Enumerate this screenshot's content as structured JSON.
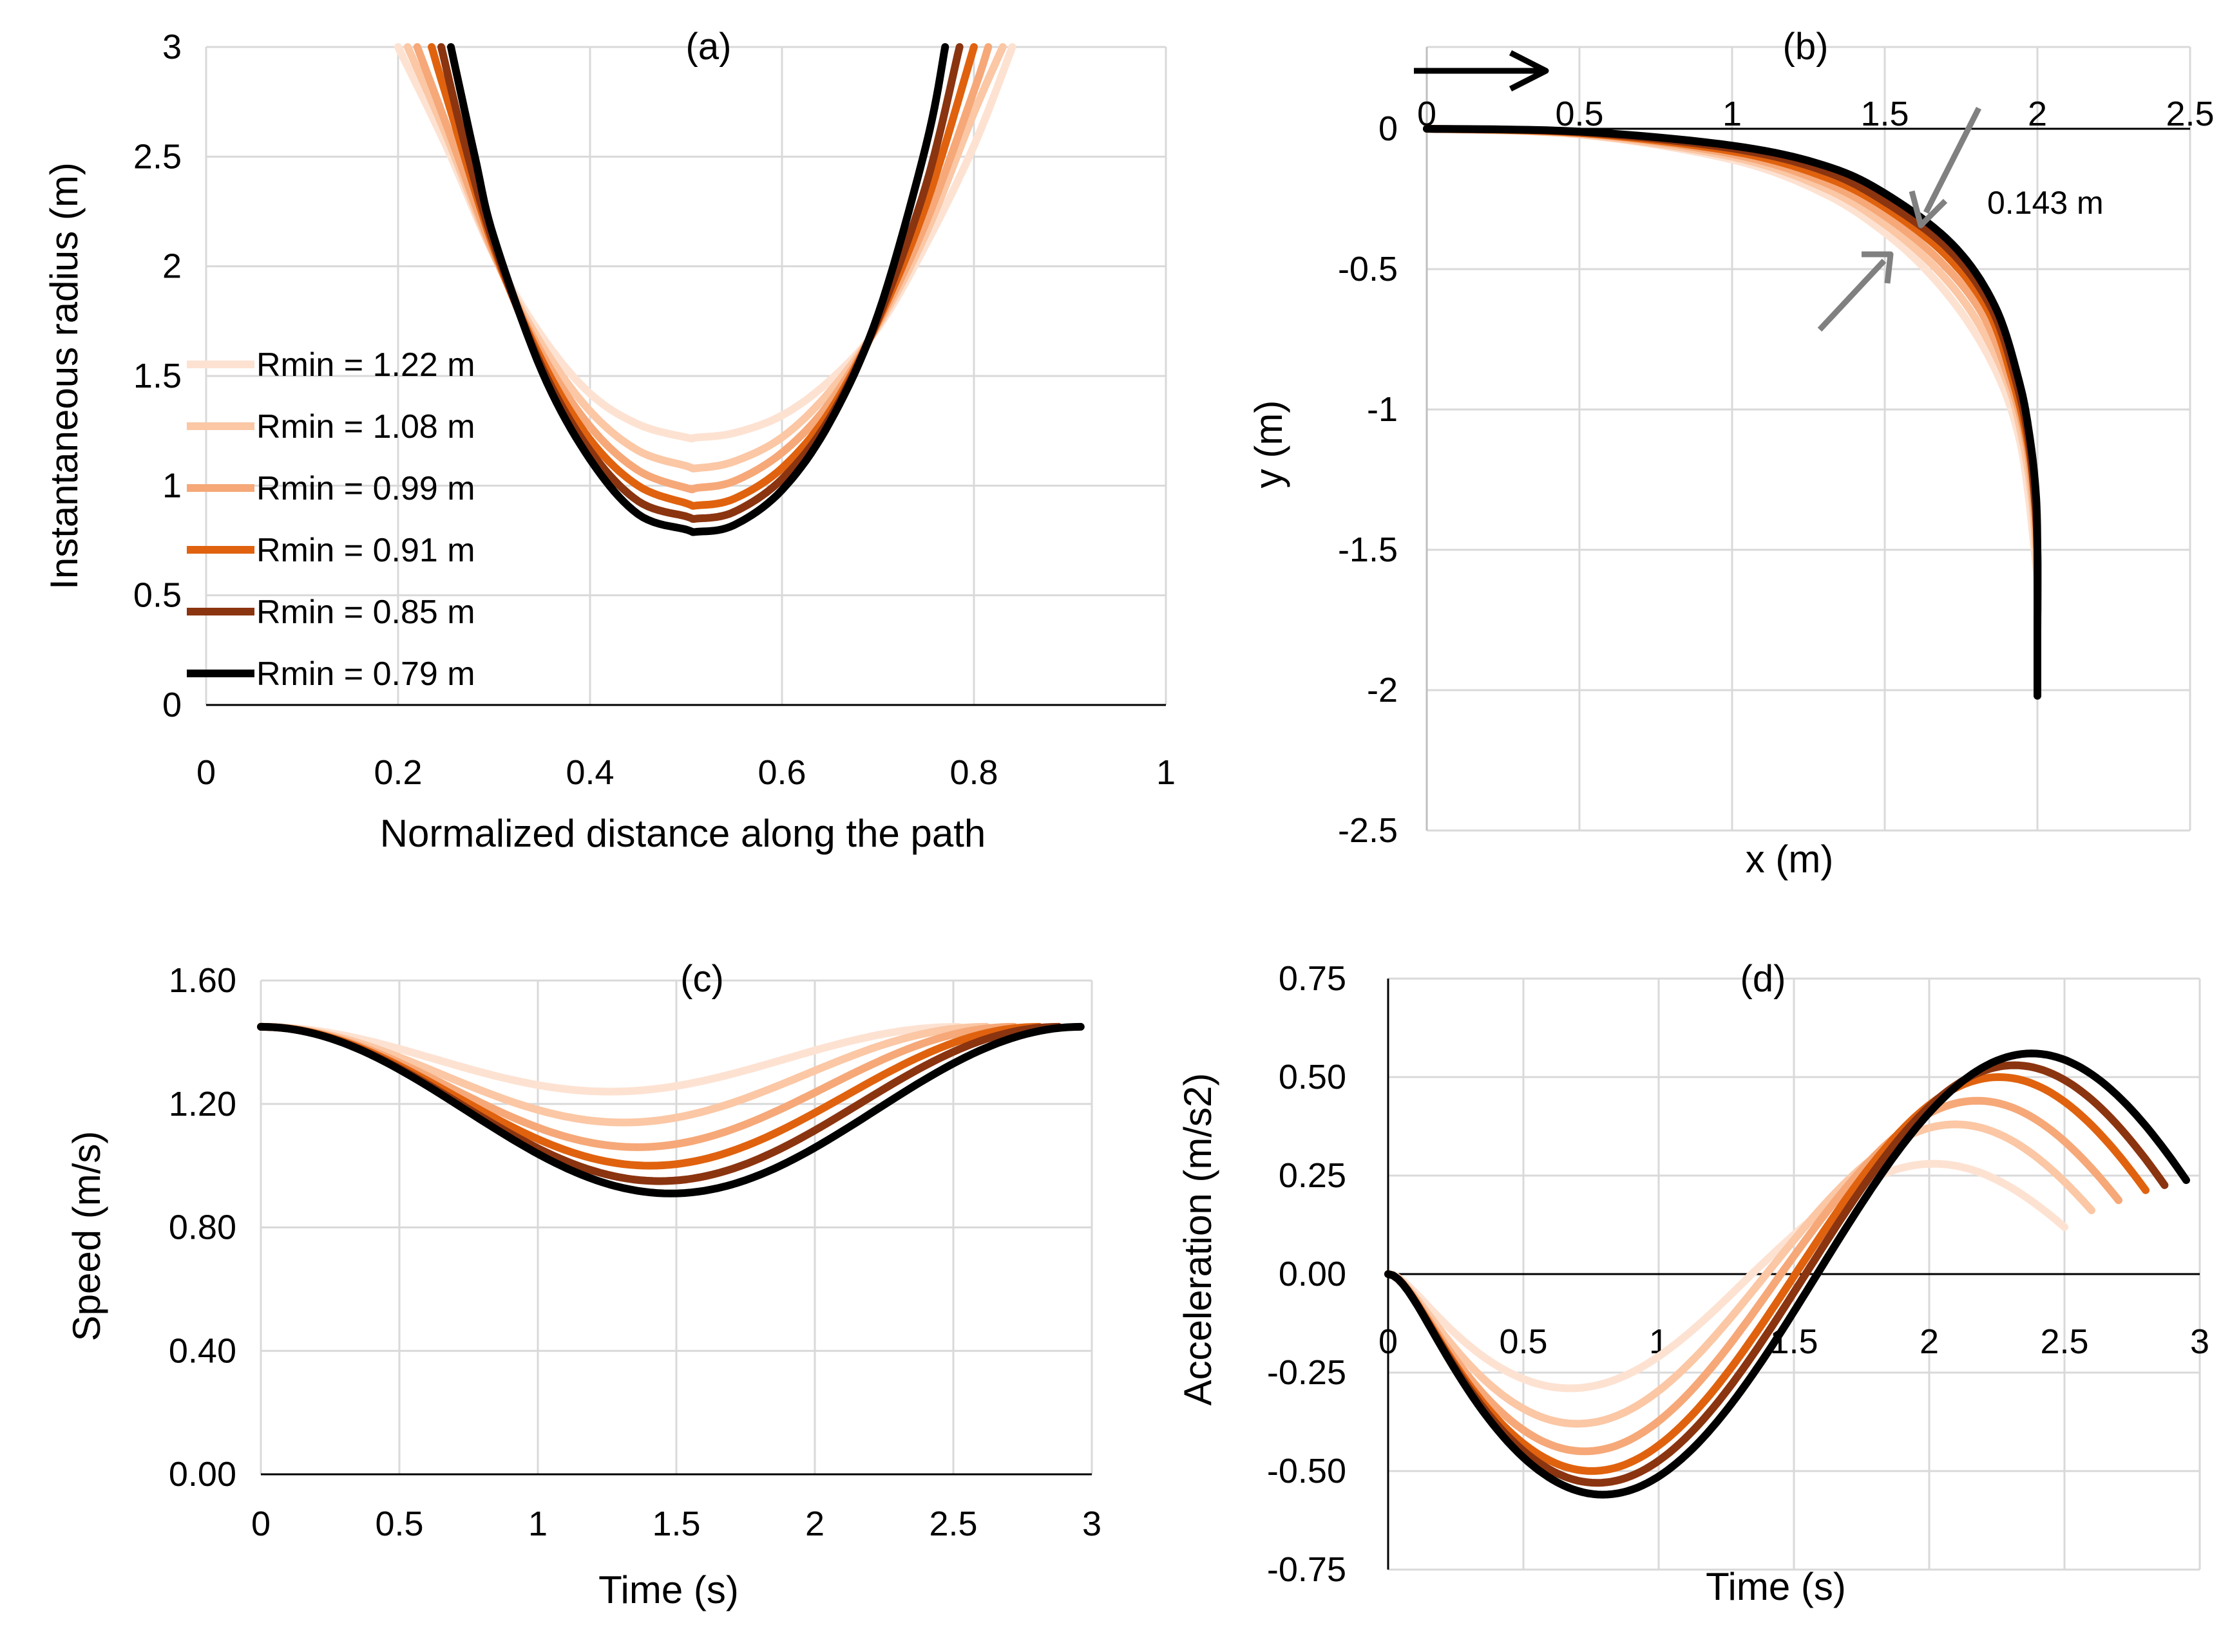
{
  "chart_data": [
    {
      "type": "line",
      "title": "(a)",
      "xlabel": "Normalized distance along the path",
      "ylabel": "Instantaneous radius (m)",
      "xlim": [
        0,
        1
      ],
      "ylim": [
        0,
        3
      ],
      "xticks": [
        "0",
        "0.2",
        "0.4",
        "0.6",
        "0.8",
        "1"
      ],
      "yticks": [
        "0",
        "0.5",
        "1",
        "1.5",
        "2",
        "2.5",
        "3"
      ],
      "legend_position": "left",
      "series": [
        {
          "name": "Rmin = 1.22 m",
          "color": "#fde2d2",
          "x": [
            0.2,
            0.25,
            0.3,
            0.35,
            0.4,
            0.45,
            0.5,
            0.512,
            0.55,
            0.6,
            0.65,
            0.7,
            0.75,
            0.8,
            0.84
          ],
          "y": [
            3.0,
            2.55,
            2.05,
            1.68,
            1.42,
            1.28,
            1.22,
            1.22,
            1.24,
            1.32,
            1.48,
            1.72,
            2.1,
            2.55,
            3.0
          ]
        },
        {
          "name": "Rmin = 1.08 m",
          "color": "#fbc7a5",
          "x": [
            0.21,
            0.25,
            0.3,
            0.35,
            0.4,
            0.45,
            0.5,
            0.512,
            0.55,
            0.6,
            0.65,
            0.7,
            0.75,
            0.8,
            0.83
          ],
          "y": [
            3.0,
            2.6,
            2.05,
            1.64,
            1.34,
            1.16,
            1.09,
            1.08,
            1.11,
            1.22,
            1.43,
            1.73,
            2.15,
            2.7,
            3.0
          ]
        },
        {
          "name": "Rmin = 0.99 m",
          "color": "#f6a878",
          "x": [
            0.22,
            0.25,
            0.3,
            0.35,
            0.4,
            0.45,
            0.5,
            0.512,
            0.55,
            0.6,
            0.65,
            0.7,
            0.75,
            0.8,
            0.815
          ],
          "y": [
            3.0,
            2.65,
            2.06,
            1.6,
            1.27,
            1.07,
            0.99,
            0.99,
            1.02,
            1.15,
            1.38,
            1.74,
            2.2,
            2.8,
            3.0
          ]
        },
        {
          "name": "Rmin = 0.91 m",
          "color": "#e0620e",
          "x": [
            0.235,
            0.25,
            0.3,
            0.35,
            0.4,
            0.45,
            0.5,
            0.512,
            0.55,
            0.6,
            0.65,
            0.7,
            0.75,
            0.8
          ],
          "y": [
            3.0,
            2.78,
            2.08,
            1.57,
            1.21,
            1.0,
            0.92,
            0.91,
            0.94,
            1.08,
            1.34,
            1.75,
            2.28,
            3.0
          ]
        },
        {
          "name": "Rmin = 0.85 m",
          "color": "#8b3410",
          "x": [
            0.245,
            0.27,
            0.3,
            0.35,
            0.4,
            0.45,
            0.5,
            0.512,
            0.55,
            0.6,
            0.65,
            0.7,
            0.75,
            0.785
          ],
          "y": [
            3.0,
            2.55,
            2.1,
            1.54,
            1.16,
            0.93,
            0.86,
            0.85,
            0.88,
            1.03,
            1.31,
            1.76,
            2.37,
            3.0
          ]
        },
        {
          "name": "Rmin = 0.79 m",
          "color": "#000000",
          "x": [
            0.255,
            0.28,
            0.3,
            0.35,
            0.4,
            0.45,
            0.5,
            0.512,
            0.55,
            0.6,
            0.65,
            0.7,
            0.75,
            0.77
          ],
          "y": [
            3.0,
            2.5,
            2.13,
            1.52,
            1.12,
            0.87,
            0.8,
            0.79,
            0.82,
            0.98,
            1.29,
            1.78,
            2.55,
            3.0
          ]
        }
      ]
    },
    {
      "type": "line",
      "title": "(b)",
      "xlabel": "x (m)",
      "ylabel": "y (m)",
      "xlim": [
        0,
        2.5
      ],
      "ylim": [
        -2.5,
        0.3
      ],
      "xticks": [
        "0",
        "0.5",
        "1",
        "1.5",
        "2",
        "2.5"
      ],
      "yticks": [
        "0",
        "-0.5",
        "-1",
        "-1.5",
        "-2",
        "-2.5"
      ],
      "annotation": "0.143 m",
      "direction_arrow": "rightward",
      "series": [
        {
          "name": "Rmin = 1.22 m",
          "color": "#fde2d2",
          "x": [
            0,
            0.5,
            1,
            1.3,
            1.5,
            1.65,
            1.78,
            1.88,
            1.94,
            1.97,
            1.99,
            2.0
          ],
          "y": [
            0,
            -0.02,
            -0.11,
            -0.23,
            -0.37,
            -0.52,
            -0.7,
            -0.9,
            -1.1,
            -1.3,
            -1.5,
            -1.6
          ]
        },
        {
          "name": "Rmin = 1.08 m",
          "color": "#fbc7a5",
          "x": [
            0,
            0.5,
            1,
            1.3,
            1.5,
            1.67,
            1.8,
            1.9,
            1.95,
            1.98,
            1.995,
            2.0
          ],
          "y": [
            0,
            -0.02,
            -0.1,
            -0.21,
            -0.34,
            -0.5,
            -0.68,
            -0.9,
            -1.1,
            -1.3,
            -1.5,
            -1.65
          ]
        },
        {
          "name": "Rmin = 0.99 m",
          "color": "#f6a878",
          "x": [
            0,
            0.5,
            1,
            1.3,
            1.5,
            1.68,
            1.82,
            1.91,
            1.96,
            1.985,
            1.998,
            2.0
          ],
          "y": [
            0,
            -0.015,
            -0.09,
            -0.19,
            -0.31,
            -0.47,
            -0.66,
            -0.9,
            -1.1,
            -1.3,
            -1.5,
            -1.7
          ]
        },
        {
          "name": "Rmin = 0.91 m",
          "color": "#e0620e",
          "x": [
            0,
            0.5,
            1,
            1.3,
            1.5,
            1.7,
            1.84,
            1.92,
            1.965,
            1.99,
            2.0,
            2.0
          ],
          "y": [
            0,
            -0.015,
            -0.08,
            -0.17,
            -0.28,
            -0.45,
            -0.65,
            -0.9,
            -1.1,
            -1.3,
            -1.5,
            -1.75
          ]
        },
        {
          "name": "Rmin = 0.85 m",
          "color": "#8b3410",
          "x": [
            0,
            0.5,
            1,
            1.3,
            1.5,
            1.71,
            1.85,
            1.93,
            1.97,
            1.99,
            2.0,
            2.0
          ],
          "y": [
            0,
            -0.012,
            -0.07,
            -0.15,
            -0.26,
            -0.43,
            -0.64,
            -0.9,
            -1.1,
            -1.3,
            -1.5,
            -1.8
          ]
        },
        {
          "name": "Rmin = 0.79 m",
          "color": "#000000",
          "x": [
            0,
            0.5,
            1,
            1.3,
            1.5,
            1.72,
            1.86,
            1.94,
            1.975,
            1.995,
            2.0,
            2.0,
            2.0
          ],
          "y": [
            0,
            -0.01,
            -0.06,
            -0.13,
            -0.23,
            -0.41,
            -0.63,
            -0.9,
            -1.1,
            -1.3,
            -1.5,
            -1.8,
            -2.02
          ]
        }
      ]
    },
    {
      "type": "line",
      "title": "(c)",
      "xlabel": "Time (s)",
      "ylabel": "Speed (m/s)",
      "xlim": [
        0,
        3
      ],
      "ylim": [
        0,
        1.6
      ],
      "xticks": [
        "0",
        "0.5",
        "1",
        "1.5",
        "2",
        "2.5",
        "3"
      ],
      "yticks": [
        "0.00",
        "0.40",
        "0.80",
        "1.20",
        "1.60"
      ],
      "series": [
        {
          "name": "Rmin = 1.22 m",
          "color": "#fde2d2",
          "tmax": 2.52,
          "vmin": 1.24
        },
        {
          "name": "Rmin = 1.08 m",
          "color": "#fbc7a5",
          "tmax": 2.62,
          "vmin": 1.14
        },
        {
          "name": "Rmin = 0.99 m",
          "color": "#f6a878",
          "tmax": 2.72,
          "vmin": 1.06
        },
        {
          "name": "Rmin = 0.91 m",
          "color": "#e0620e",
          "tmax": 2.81,
          "vmin": 1.0
        },
        {
          "name": "Rmin = 0.85 m",
          "color": "#8b3410",
          "tmax": 2.88,
          "vmin": 0.95
        },
        {
          "name": "Rmin = 0.79 m",
          "color": "#000000",
          "tmax": 2.96,
          "vmin": 0.91
        }
      ],
      "v0": 1.45
    },
    {
      "type": "line",
      "title": "(d)",
      "xlabel": "Time (s)",
      "ylabel": "Acceleration (m/s2)",
      "xlim": [
        0,
        3
      ],
      "ylim": [
        -0.75,
        0.75
      ],
      "xticks": [
        "0",
        "0.5",
        "1",
        "1.5",
        "2",
        "2.5",
        "3"
      ],
      "yticks": [
        "-0.75",
        "-0.50",
        "-0.25",
        "0.00",
        "0.25",
        "0.50",
        "0.75"
      ],
      "series": [
        {
          "name": "Rmin = 1.22 m",
          "color": "#fde2d2",
          "tmax": 2.5,
          "amin": -0.29,
          "amax": 0.28
        },
        {
          "name": "Rmin = 1.08 m",
          "color": "#fbc7a5",
          "tmax": 2.6,
          "amin": -0.38,
          "amax": 0.38
        },
        {
          "name": "Rmin = 0.99 m",
          "color": "#f6a878",
          "tmax": 2.7,
          "amin": -0.45,
          "amax": 0.44
        },
        {
          "name": "Rmin = 0.91 m",
          "color": "#e0620e",
          "tmax": 2.8,
          "amin": -0.5,
          "amax": 0.5
        },
        {
          "name": "Rmin = 0.85 m",
          "color": "#8b3410",
          "tmax": 2.87,
          "amin": -0.53,
          "amax": 0.53
        },
        {
          "name": "Rmin = 0.79 m",
          "color": "#000000",
          "tmax": 2.95,
          "amin": -0.56,
          "amax": 0.56
        }
      ]
    }
  ]
}
